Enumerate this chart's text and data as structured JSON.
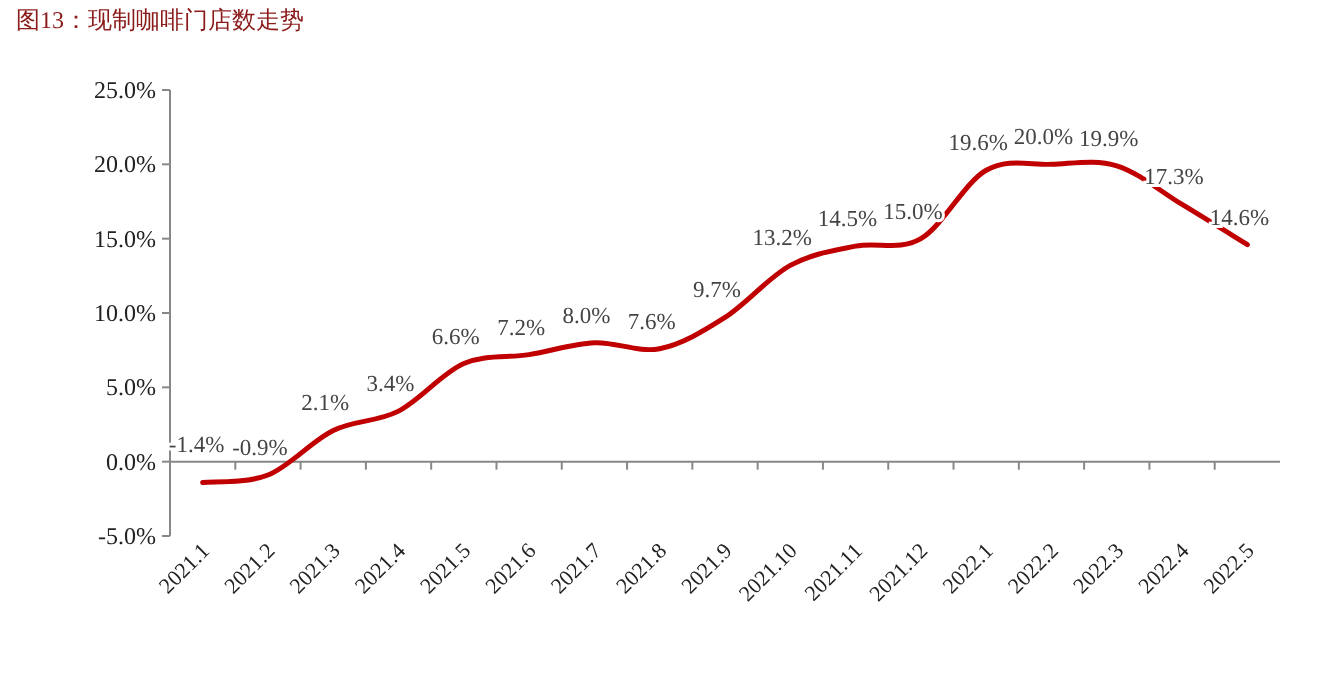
{
  "chart_data": {
    "type": "line",
    "title": "图13：现制咖啡门店数走势",
    "categories": [
      "2021.1",
      "2021.2",
      "2021.3",
      "2021.4",
      "2021.5",
      "2021.6",
      "2021.7",
      "2021.8",
      "2021.9",
      "2021.10",
      "2021.11",
      "2021.12",
      "2022.1",
      "2022.2",
      "2022.3",
      "2022.4",
      "2022.5"
    ],
    "values": [
      -1.4,
      -0.9,
      2.1,
      3.4,
      6.6,
      7.2,
      8.0,
      7.6,
      9.7,
      13.2,
      14.5,
      15.0,
      19.6,
      20.0,
      19.9,
      17.3,
      14.6
    ],
    "value_labels": [
      "-1.4%",
      "-0.9%",
      "2.1%",
      "3.4%",
      "6.6%",
      "7.2%",
      "8.0%",
      "7.6%",
      "9.7%",
      "13.2%",
      "14.5%",
      "15.0%",
      "19.6%",
      "20.0%",
      "19.9%",
      "17.3%",
      "14.6%"
    ],
    "color": "#c00000",
    "ylim": [
      -5,
      25
    ],
    "yticks": [
      {
        "value": -5,
        "label": "-5.0%"
      },
      {
        "value": 0,
        "label": "0.0%"
      },
      {
        "value": 5,
        "label": "5.0%"
      },
      {
        "value": 10,
        "label": "10.0%"
      },
      {
        "value": 15,
        "label": "15.0%"
      },
      {
        "value": 20,
        "label": "20.0%"
      },
      {
        "value": 25,
        "label": "25.0%"
      }
    ],
    "line_style": "solid",
    "marker": "none"
  }
}
